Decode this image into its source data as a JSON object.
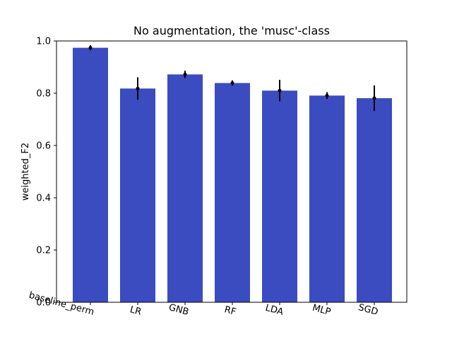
{
  "chart_data": {
    "type": "bar",
    "title": "No augmentation, the 'musc'-class",
    "xlabel": "",
    "ylabel": "weighted_F2",
    "categories": [
      "baseline_perm",
      "LR",
      "GNB",
      "RF",
      "LDA",
      "MLP",
      "SGD"
    ],
    "values": [
      0.974,
      0.818,
      0.872,
      0.839,
      0.81,
      0.791,
      0.781
    ],
    "errors": [
      0.01,
      0.043,
      0.014,
      0.01,
      0.041,
      0.013,
      0.049
    ],
    "ylim": [
      0,
      1.0
    ],
    "yticks": [
      "0.0",
      "0.2",
      "0.4",
      "0.6",
      "0.8",
      "1.0"
    ],
    "ytick_values": [
      0,
      0.2,
      0.4,
      0.6,
      0.8,
      1.0
    ],
    "bar_color": "#3b4cc0",
    "error_color": "#000000",
    "grid": false,
    "xtick_rotation_deg": 15
  }
}
